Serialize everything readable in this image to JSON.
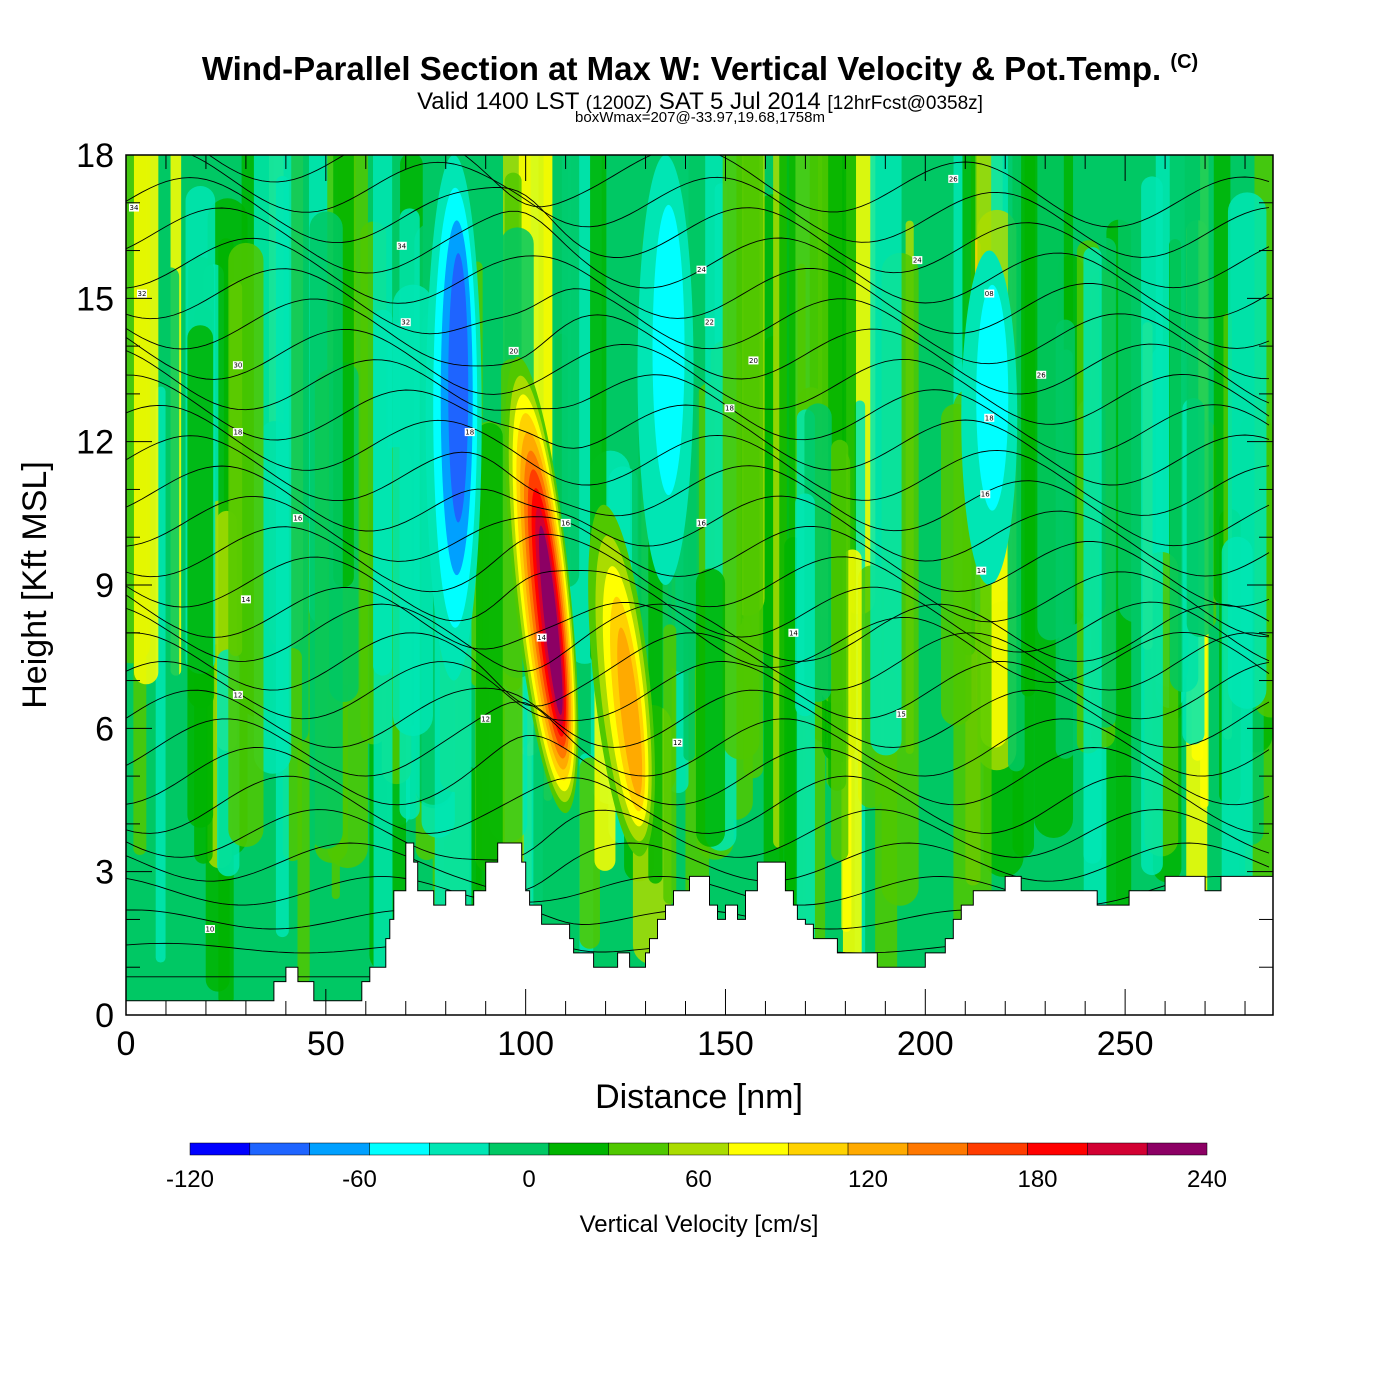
{
  "header": {
    "title": "Wind-Parallel Section at Max W: Vertical Velocity & Pot.Temp.",
    "copyright": "(C)",
    "valid_prefix": "Valid 1400 LST",
    "valid_utc": "(1200Z)",
    "valid_date": "SAT 5 Jul 2014",
    "valid_fcst": "[12hrFcst@0358z]",
    "box_wmax": "boxWmax=207@-33.97,19.68,1758m"
  },
  "chart_data": {
    "type": "contour",
    "xlabel": "Distance [nm]",
    "ylabel": "Height [Kft MSL]",
    "xlim": [
      0,
      287
    ],
    "ylim": [
      0,
      18
    ],
    "x_ticks": [
      0,
      50,
      100,
      150,
      200,
      250
    ],
    "y_ticks": [
      0,
      3,
      6,
      9,
      12,
      15,
      18
    ],
    "colorbar": {
      "label": "Vertical Velocity [cm/s]",
      "levels": [
        -120,
        -100,
        -80,
        -60,
        -40,
        -20,
        0,
        20,
        40,
        60,
        80,
        100,
        120,
        140,
        160,
        180,
        200,
        220,
        240
      ],
      "tick_labels": [
        "-120",
        "-60",
        "0",
        "60",
        "120",
        "180",
        "240"
      ],
      "colors": [
        "#0000ff",
        "#1e64ff",
        "#00a0ff",
        "#00ffff",
        "#00e6b4",
        "#00c864",
        "#00b400",
        "#50c800",
        "#aadc00",
        "#ffff00",
        "#ffd200",
        "#ffaa00",
        "#ff7800",
        "#ff3c00",
        "#ff0000",
        "#d20032",
        "#8c0064"
      ]
    },
    "updraft_cores": [
      {
        "x": 104,
        "bottom": 4.2,
        "top": 13.8,
        "max_w": 207,
        "max_height": 8.0
      },
      {
        "x": 124,
        "bottom": 3.3,
        "top": 10.7,
        "max_w": 110
      }
    ],
    "downdraft_cores": [
      {
        "x": 82,
        "bottom": 7,
        "top": 18,
        "min_w": -90
      },
      {
        "x": 216,
        "bottom": 9,
        "top": 16,
        "min_w": -45
      },
      {
        "x": 135,
        "bottom": 9,
        "top": 18,
        "min_w": -40
      }
    ],
    "terrain": {
      "x": [
        0,
        34,
        37,
        40,
        43,
        46,
        47,
        50,
        56,
        59,
        61,
        63,
        65,
        66,
        67,
        70,
        72,
        73,
        75,
        77,
        79,
        80,
        81,
        82,
        85,
        86,
        87,
        88,
        89,
        90,
        91,
        92,
        93,
        95,
        98,
        99,
        100,
        101,
        104,
        110,
        111,
        112,
        113,
        115,
        117,
        119,
        120,
        121,
        122,
        123,
        124,
        126,
        128,
        130,
        131,
        132,
        133,
        135,
        137,
        139,
        140,
        141,
        142,
        144,
        146,
        148,
        150,
        152,
        153,
        154,
        155,
        158,
        160,
        163,
        165,
        167,
        168,
        170,
        172,
        174,
        176,
        178,
        182,
        185,
        187,
        188,
        190,
        192,
        195,
        197,
        198,
        200,
        203,
        205,
        206,
        207,
        208,
        209,
        210,
        211,
        212,
        213,
        214,
        215,
        216,
        218,
        220,
        222,
        224,
        228,
        233,
        238,
        243,
        248,
        251,
        253,
        258,
        260,
        265,
        270,
        272,
        274,
        276,
        280,
        287
      ],
      "height_kft": [
        0.3,
        0.3,
        0.7,
        1.0,
        0.7,
        0.7,
        0.3,
        0.3,
        0.3,
        0.7,
        1.0,
        1.0,
        1.6,
        2.0,
        2.6,
        3.6,
        3.2,
        2.6,
        2.6,
        2.3,
        2.3,
        2.6,
        2.6,
        2.6,
        2.3,
        2.3,
        2.6,
        2.6,
        2.6,
        3.2,
        3.2,
        3.2,
        3.6,
        3.6,
        3.6,
        3.2,
        2.6,
        2.3,
        1.9,
        1.9,
        1.6,
        1.3,
        1.3,
        1.3,
        1.0,
        1.0,
        1.0,
        1.0,
        1.0,
        1.3,
        1.3,
        1.0,
        1.0,
        1.3,
        1.6,
        1.6,
        2.0,
        2.3,
        2.6,
        2.6,
        2.6,
        2.9,
        2.9,
        2.9,
        2.3,
        2.0,
        2.3,
        2.3,
        2.0,
        2.0,
        2.6,
        3.2,
        3.2,
        3.2,
        2.6,
        2.3,
        2.0,
        1.9,
        1.6,
        1.6,
        1.6,
        1.3,
        1.3,
        1.3,
        1.3,
        1.0,
        1.0,
        1.0,
        1.0,
        1.0,
        1.0,
        1.3,
        1.3,
        1.6,
        1.6,
        2.0,
        2.0,
        2.3,
        2.3,
        2.3,
        2.6,
        2.6,
        2.6,
        2.6,
        2.6,
        2.6,
        2.9,
        2.9,
        2.6,
        2.6,
        2.6,
        2.6,
        2.3,
        2.3,
        2.6,
        2.6,
        2.6,
        2.9,
        2.9,
        2.6,
        2.6,
        2.9,
        2.9,
        2.9,
        2.9
      ]
    },
    "theta_contour_labels": [
      {
        "text": "34",
        "x": 2,
        "y": 16.9
      },
      {
        "text": "32",
        "x": 4,
        "y": 15.1
      },
      {
        "text": "30",
        "x": 28,
        "y": 13.6
      },
      {
        "text": "18",
        "x": 28,
        "y": 12.2
      },
      {
        "text": "16",
        "x": 43,
        "y": 10.4
      },
      {
        "text": "14",
        "x": 30,
        "y": 8.7
      },
      {
        "text": "12",
        "x": 28,
        "y": 6.7
      },
      {
        "text": "10",
        "x": 21,
        "y": 1.8
      },
      {
        "text": "34",
        "x": 69,
        "y": 16.1
      },
      {
        "text": "32",
        "x": 70,
        "y": 14.5
      },
      {
        "text": "20",
        "x": 97,
        "y": 13.9
      },
      {
        "text": "18",
        "x": 86,
        "y": 12.2
      },
      {
        "text": "16",
        "x": 110,
        "y": 10.3
      },
      {
        "text": "14",
        "x": 104,
        "y": 7.9
      },
      {
        "text": "12",
        "x": 90,
        "y": 6.2
      },
      {
        "text": "12",
        "x": 138,
        "y": 5.7
      },
      {
        "text": "24",
        "x": 144,
        "y": 15.6
      },
      {
        "text": "22",
        "x": 146,
        "y": 14.5
      },
      {
        "text": "20",
        "x": 157,
        "y": 13.7
      },
      {
        "text": "18",
        "x": 151,
        "y": 12.7
      },
      {
        "text": "16",
        "x": 144,
        "y": 10.3
      },
      {
        "text": "14",
        "x": 167,
        "y": 8.0
      },
      {
        "text": "15",
        "x": 194,
        "y": 6.3
      },
      {
        "text": "26",
        "x": 207,
        "y": 17.5
      },
      {
        "text": "24",
        "x": 198,
        "y": 15.8
      },
      {
        "text": "08",
        "x": 216,
        "y": 15.1
      },
      {
        "text": "26",
        "x": 229,
        "y": 13.4
      },
      {
        "text": "18",
        "x": 216,
        "y": 12.5
      },
      {
        "text": "16",
        "x": 215,
        "y": 10.9
      },
      {
        "text": "14",
        "x": 214,
        "y": 9.3
      }
    ]
  }
}
